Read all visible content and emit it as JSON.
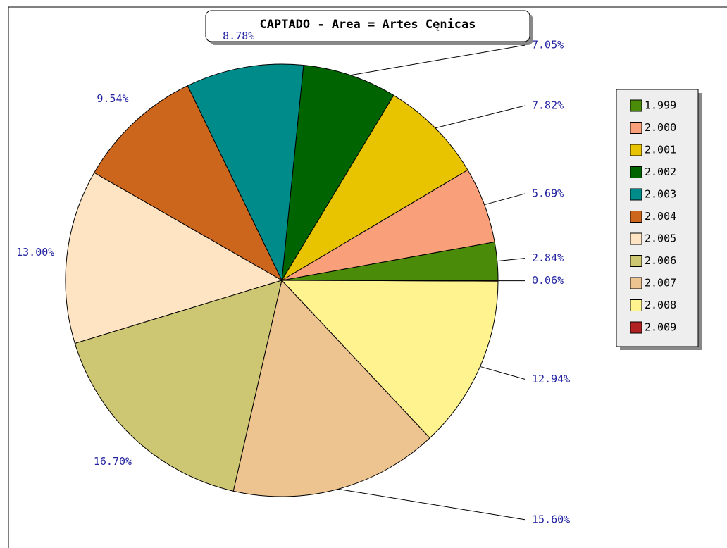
{
  "chart_data": {
    "type": "pie",
    "title": "CAPTADO - Area = Artes Cęnicas",
    "categories": [
      "1.999",
      "2.000",
      "2.001",
      "2.002",
      "2.003",
      "2.004",
      "2.005",
      "2.006",
      "2.007",
      "2.008",
      "2.009"
    ],
    "values": [
      2.84,
      5.69,
      7.82,
      7.05,
      8.78,
      9.54,
      13.0,
      16.7,
      15.6,
      12.94,
      0.06
    ],
    "value_labels": [
      "2.84%",
      "5.69%",
      "7.82%",
      "7.05%",
      "8.78%",
      "9.54%",
      "13.00%",
      "16.70%",
      "15.60%",
      "12.94%",
      "0.06%"
    ],
    "colors": [
      "#4a8c0a",
      "#f9a07a",
      "#e8c400",
      "#006400",
      "#008b8b",
      "#cd661d",
      "#ffe4c4",
      "#cdc673",
      "#edc48f",
      "#fff38f",
      "#b22222"
    ],
    "legend": "right"
  }
}
